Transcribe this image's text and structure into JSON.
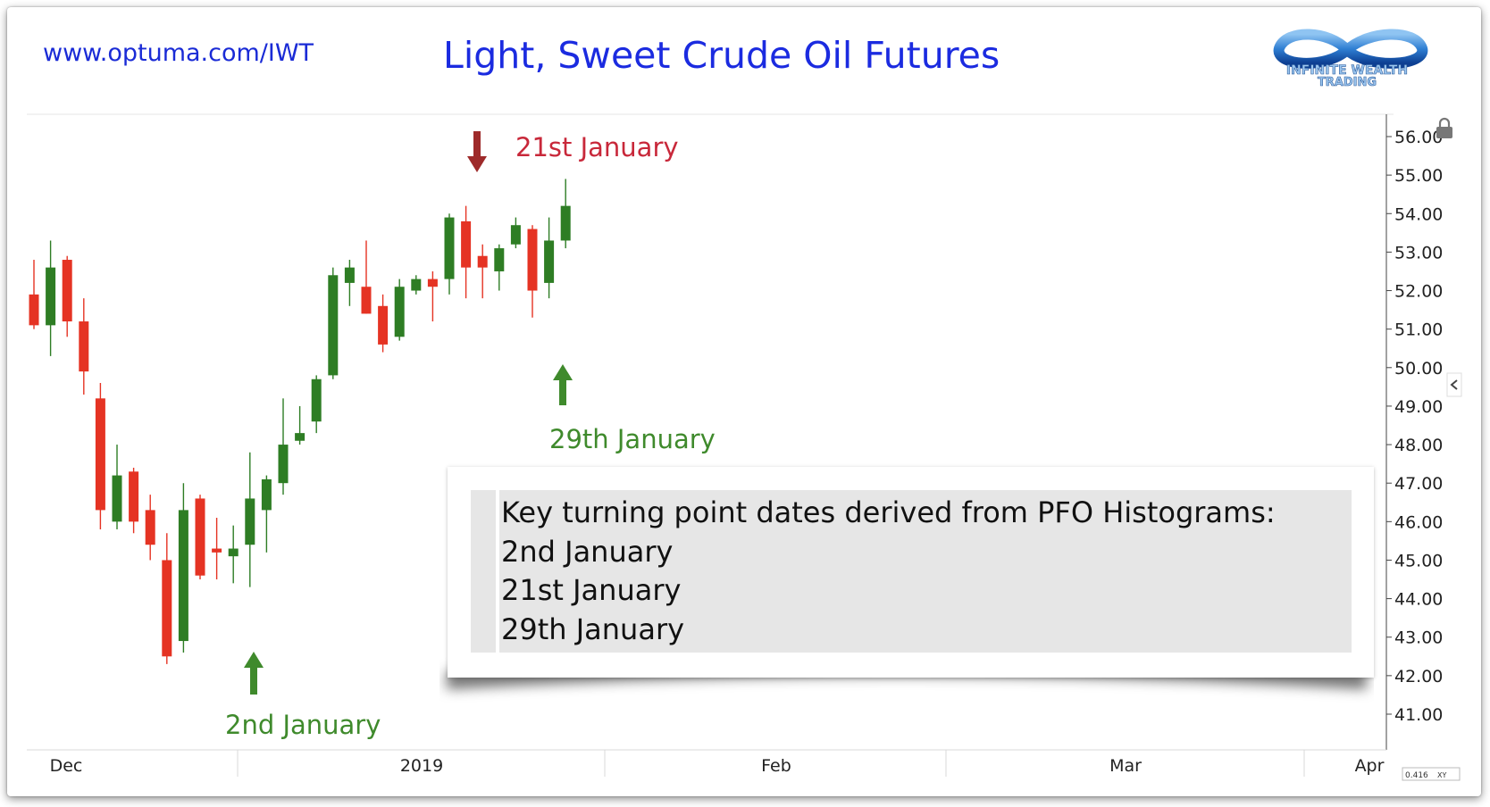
{
  "header": {
    "url": "www.optuma.com/IWT",
    "title": "Light, Sweet Crude Oil Futures",
    "logo_text_1": "INFINITE WEALTH",
    "logo_text_2": "TRADING"
  },
  "colors": {
    "up": "#2e7d24",
    "down": "#e53323",
    "title": "#1b2be0",
    "red_annotation": "#c8283a",
    "green_annotation": "#3f8a2c"
  },
  "annotations": {
    "jan21": "21st January",
    "jan29": "29th January",
    "jan2": "2nd January"
  },
  "note": {
    "heading": "Key turning point dates derived from PFO Histograms:",
    "lines": [
      "2nd January",
      "21st January",
      "29th January"
    ]
  },
  "chart_data": {
    "type": "candlestick",
    "title": "Light, Sweet Crude Oil Futures",
    "ylim": [
      41.0,
      56.4
    ],
    "y_ticks": [
      "56.00",
      "55.00",
      "54.00",
      "53.00",
      "52.00",
      "51.00",
      "50.00",
      "49.00",
      "48.00",
      "47.00",
      "46.00",
      "45.00",
      "44.00",
      "43.00",
      "42.00",
      "41.00"
    ],
    "x_labels": [
      "Dec",
      "2019",
      "Feb",
      "Mar",
      "Apr"
    ],
    "corner_readout": "0.416",
    "corner_readout_suffix": "XY",
    "grid": false,
    "candles": [
      {
        "o": 51.9,
        "h": 52.8,
        "l": 51.0,
        "c": 51.1
      },
      {
        "o": 51.1,
        "h": 53.3,
        "l": 50.3,
        "c": 52.6
      },
      {
        "o": 52.8,
        "h": 52.9,
        "l": 50.8,
        "c": 51.2
      },
      {
        "o": 51.2,
        "h": 51.8,
        "l": 49.3,
        "c": 49.9
      },
      {
        "o": 49.2,
        "h": 49.6,
        "l": 45.8,
        "c": 46.3
      },
      {
        "o": 46.0,
        "h": 48.0,
        "l": 45.8,
        "c": 47.2
      },
      {
        "o": 47.3,
        "h": 47.4,
        "l": 45.7,
        "c": 46.0
      },
      {
        "o": 46.3,
        "h": 46.7,
        "l": 45.0,
        "c": 45.4
      },
      {
        "o": 45.0,
        "h": 45.7,
        "l": 42.3,
        "c": 42.5
      },
      {
        "o": 42.9,
        "h": 47.0,
        "l": 42.6,
        "c": 46.3
      },
      {
        "o": 46.6,
        "h": 46.7,
        "l": 44.5,
        "c": 44.6
      },
      {
        "o": 45.3,
        "h": 46.1,
        "l": 44.5,
        "c": 45.2
      },
      {
        "o": 45.1,
        "h": 45.9,
        "l": 44.4,
        "c": 45.3
      },
      {
        "o": 45.4,
        "h": 47.8,
        "l": 44.3,
        "c": 46.6
      },
      {
        "o": 46.3,
        "h": 47.2,
        "l": 45.2,
        "c": 47.1
      },
      {
        "o": 47.0,
        "h": 49.2,
        "l": 46.7,
        "c": 48.0
      },
      {
        "o": 48.1,
        "h": 49.0,
        "l": 48.0,
        "c": 48.3
      },
      {
        "o": 48.6,
        "h": 49.8,
        "l": 48.3,
        "c": 49.7
      },
      {
        "o": 49.8,
        "h": 52.6,
        "l": 49.7,
        "c": 52.4
      },
      {
        "o": 52.2,
        "h": 52.8,
        "l": 51.6,
        "c": 52.6
      },
      {
        "o": 52.1,
        "h": 53.3,
        "l": 51.4,
        "c": 51.4
      },
      {
        "o": 51.6,
        "h": 51.9,
        "l": 50.4,
        "c": 50.6
      },
      {
        "o": 50.8,
        "h": 52.3,
        "l": 50.7,
        "c": 52.1
      },
      {
        "o": 52.0,
        "h": 52.4,
        "l": 51.9,
        "c": 52.3
      },
      {
        "o": 52.3,
        "h": 52.5,
        "l": 51.2,
        "c": 52.1
      },
      {
        "o": 52.3,
        "h": 54.0,
        "l": 51.9,
        "c": 53.9
      },
      {
        "o": 53.8,
        "h": 54.2,
        "l": 51.8,
        "c": 52.6
      },
      {
        "o": 52.9,
        "h": 53.2,
        "l": 51.8,
        "c": 52.6
      },
      {
        "o": 52.5,
        "h": 53.2,
        "l": 52.0,
        "c": 53.1
      },
      {
        "o": 53.2,
        "h": 53.9,
        "l": 53.1,
        "c": 53.7
      },
      {
        "o": 53.6,
        "h": 53.7,
        "l": 51.3,
        "c": 52.0
      },
      {
        "o": 52.2,
        "h": 53.9,
        "l": 51.8,
        "c": 53.3
      },
      {
        "o": 53.3,
        "h": 54.9,
        "l": 53.1,
        "c": 54.2
      }
    ]
  }
}
